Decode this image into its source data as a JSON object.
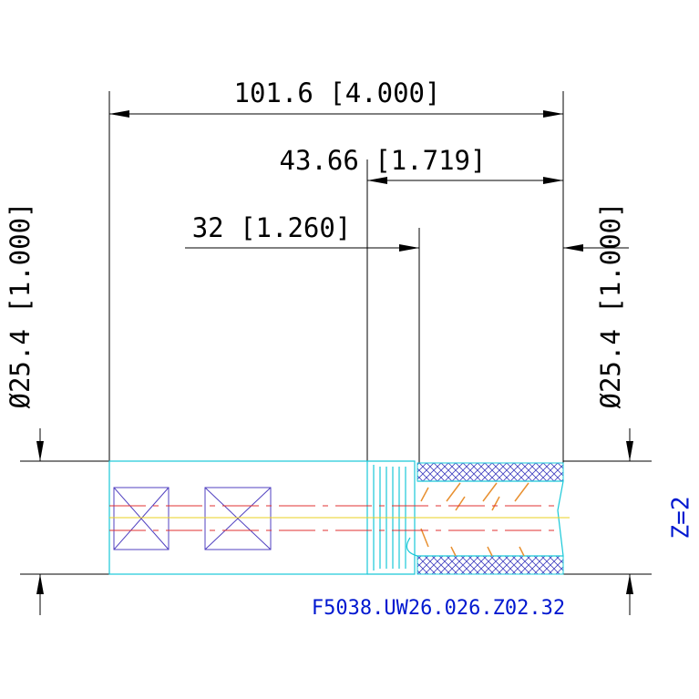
{
  "dimensions": {
    "overall_length": "101.6 [4.000]",
    "shank_length": "43.66 [1.719]",
    "flute_length": "32 [1.260]",
    "diameter_left": "Ø25.4 [1.000]",
    "diameter_right": "Ø25.4 [1.000]"
  },
  "flutes": "Z=2",
  "part_number": "F5038.UW26.026.Z02.32"
}
